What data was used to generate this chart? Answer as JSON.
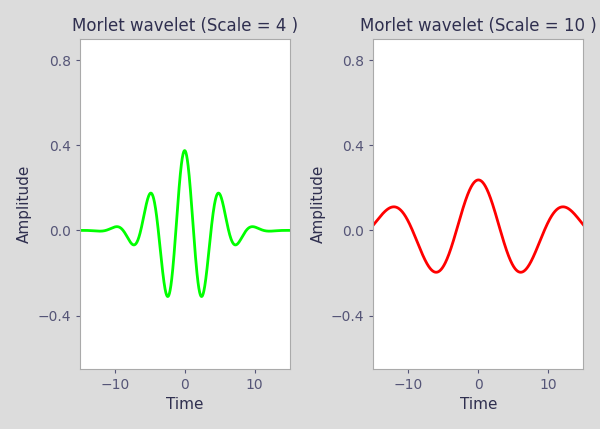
{
  "scale1": 4,
  "scale2": 10,
  "omega0": 5.0,
  "t_range": [
    -15,
    15
  ],
  "n_points": 1000,
  "ylim": [
    -0.65,
    0.9
  ],
  "yticks": [
    -0.4,
    0.0,
    0.4,
    0.8
  ],
  "xticks": [
    -10,
    0,
    10
  ],
  "color1": "#00FF00",
  "color2": "#FF0000",
  "title1": "Morlet wavelet (Scale = 4 )",
  "title2": "Morlet wavelet (Scale = 10 )",
  "xlabel": "Time",
  "ylabel": "Amplitude",
  "title_fontsize": 12,
  "label_fontsize": 11,
  "tick_fontsize": 10,
  "linewidth": 2.0,
  "fig_background": "#dcdcdc",
  "axes_background": "#ffffff"
}
